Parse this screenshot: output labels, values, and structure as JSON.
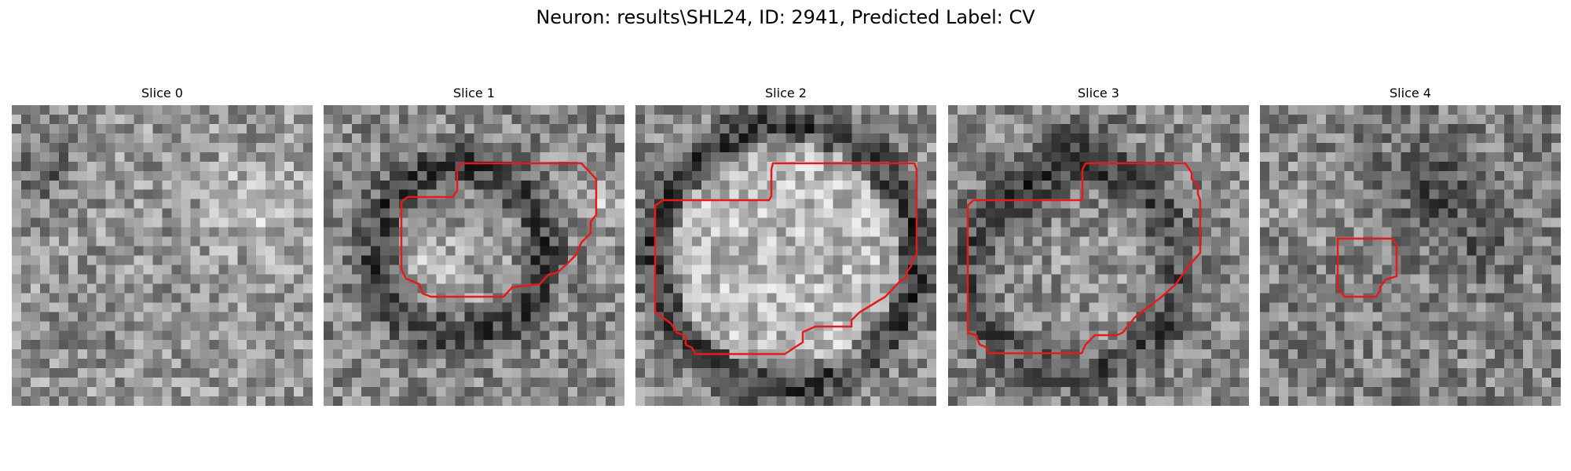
{
  "figure": {
    "title": "Neuron: results\\SHL24, ID: 2941, Predicted Label: CV",
    "contour_color": "#e61a1a",
    "colormap": "gray"
  },
  "panels": [
    {
      "title": "Slice 0"
    },
    {
      "title": "Slice 1"
    },
    {
      "title": "Slice 2"
    },
    {
      "title": "Slice 3"
    },
    {
      "title": "Slice 4"
    }
  ]
}
